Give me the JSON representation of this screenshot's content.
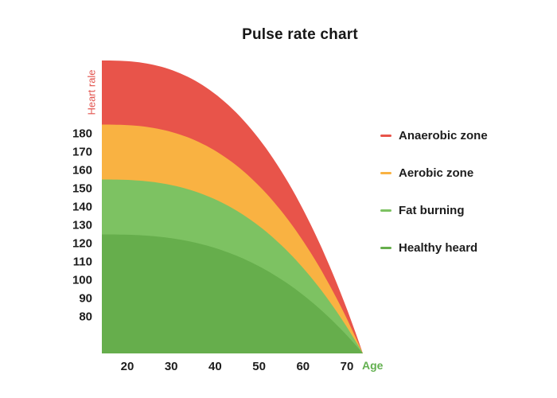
{
  "title": "Pulse rate chart",
  "chart_data": {
    "type": "area",
    "title": "Pulse rate chart",
    "x_axis": {
      "label": "Age",
      "label_color": "#62B04F",
      "ticks": [
        20,
        30,
        40,
        50,
        60,
        70
      ],
      "range": [
        14,
        73
      ]
    },
    "y_axis": {
      "label": "Heart rale",
      "label_color": "#E2544E",
      "ticks": [
        180,
        170,
        160,
        150,
        140,
        130,
        120,
        110,
        100,
        90,
        80
      ]
    },
    "zones": [
      {
        "name": "Anaerobic zone",
        "color": "#E8544A",
        "hr_at_left_edge": 220
      },
      {
        "name": "Aerobic zone",
        "color": "#F9B242",
        "hr_at_left_edge": 185
      },
      {
        "name": "Fat burning",
        "color": "#7DC262",
        "hr_at_left_edge": 155
      },
      {
        "name": "Healthy heard",
        "color": "#66AE4C",
        "hr_at_left_edge": 125
      }
    ],
    "converge_point": {
      "age": 73,
      "hr": 60
    },
    "legend_position": "right",
    "grid": false
  }
}
